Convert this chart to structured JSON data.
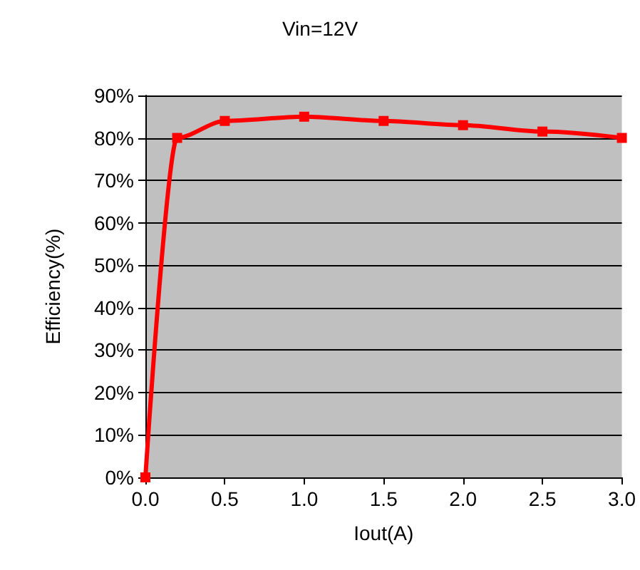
{
  "chart_data": {
    "type": "line",
    "title": "Vin=12V",
    "xlabel": "Iout(A)",
    "ylabel": "Efficiency(%)",
    "x": [
      0,
      0.2,
      0.5,
      1.0,
      1.5,
      2.0,
      2.5,
      3.0
    ],
    "series": [
      {
        "color": "#ff0000",
        "values": [
          0,
          80,
          84,
          85,
          84,
          83,
          81.5,
          80
        ]
      }
    ],
    "xlim": [
      0,
      3
    ],
    "xticks": [
      {
        "value": 0,
        "label": "0.0"
      },
      {
        "value": 0.5,
        "label": "0.5"
      },
      {
        "value": 1,
        "label": "1.0"
      },
      {
        "value": 1.5,
        "label": "1.5"
      },
      {
        "value": 2,
        "label": "2.0"
      },
      {
        "value": 2.5,
        "label": "2.5"
      },
      {
        "value": 3,
        "label": "3.0"
      }
    ],
    "ylim": [
      0,
      90
    ],
    "yticks": [
      {
        "value": 0,
        "label": "0%"
      },
      {
        "value": 10,
        "label": "10%"
      },
      {
        "value": 20,
        "label": "20%"
      },
      {
        "value": 30,
        "label": "30%"
      },
      {
        "value": 40,
        "label": "40%"
      },
      {
        "value": 50,
        "label": "50%"
      },
      {
        "value": 60,
        "label": "60%"
      },
      {
        "value": 70,
        "label": "70%"
      },
      {
        "value": 80,
        "label": "80%"
      },
      {
        "value": 90,
        "label": "90%"
      }
    ],
    "grid": "y",
    "marker": "square",
    "line_style": "solid"
  }
}
